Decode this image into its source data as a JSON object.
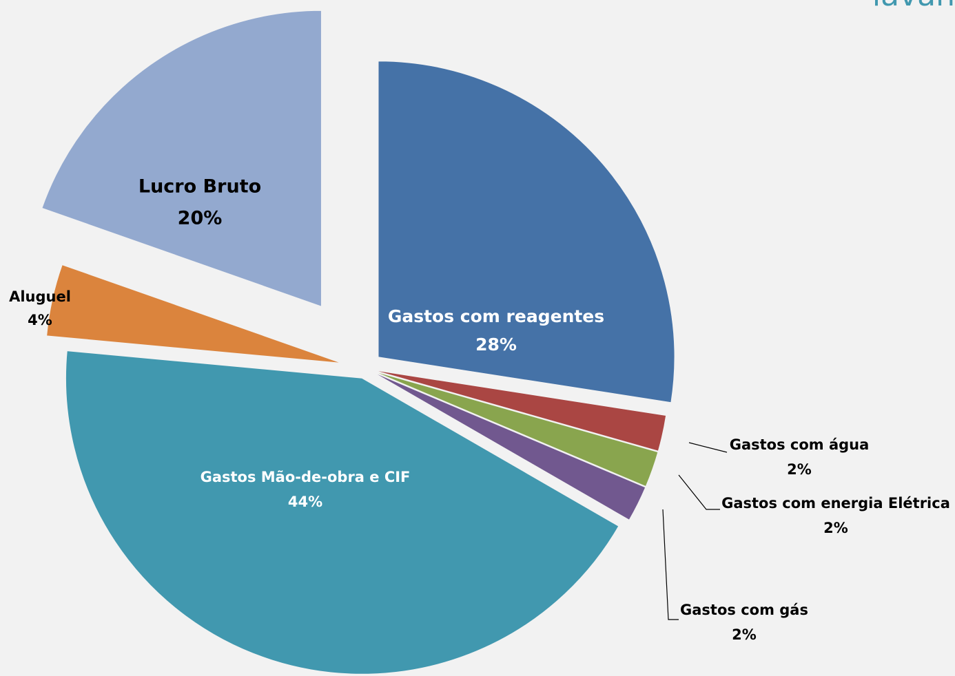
{
  "chart_data": {
    "type": "pie",
    "title": "lavan",
    "categories": [
      "Gastos com reagentes",
      "Gastos com água",
      "Gastos com energia Elétrica",
      "Gastos com gás",
      "Gastos Mão-de-obra e CIF",
      "Aluguel",
      "Lucro Bruto"
    ],
    "values": [
      28,
      2,
      2,
      2,
      44,
      4,
      20
    ],
    "value_labels": [
      "28%",
      "2%",
      "2%",
      "2%",
      "44%",
      "4%",
      "20%"
    ],
    "colors": [
      "#4572a7",
      "#aa4643",
      "#89a54e",
      "#71588f",
      "#4198af",
      "#db843d",
      "#93a9cf"
    ]
  }
}
